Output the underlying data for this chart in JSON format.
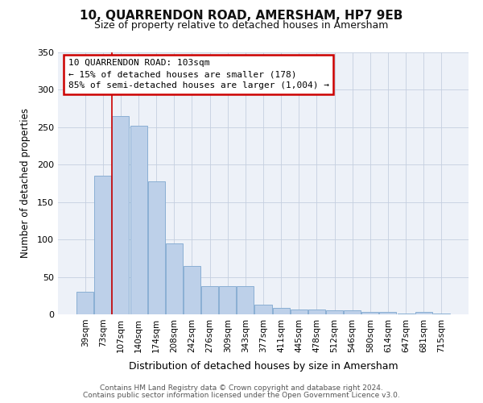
{
  "title": "10, QUARRENDON ROAD, AMERSHAM, HP7 9EB",
  "subtitle": "Size of property relative to detached houses in Amersham",
  "xlabel": "Distribution of detached houses by size in Amersham",
  "ylabel": "Number of detached properties",
  "categories": [
    "39sqm",
    "73sqm",
    "107sqm",
    "140sqm",
    "174sqm",
    "208sqm",
    "242sqm",
    "276sqm",
    "309sqm",
    "343sqm",
    "377sqm",
    "411sqm",
    "445sqm",
    "478sqm",
    "512sqm",
    "546sqm",
    "580sqm",
    "614sqm",
    "647sqm",
    "681sqm",
    "715sqm"
  ],
  "values": [
    30,
    185,
    265,
    252,
    178,
    95,
    65,
    38,
    38,
    38,
    13,
    9,
    6,
    6,
    5,
    5,
    3,
    3,
    1,
    3,
    1
  ],
  "bar_color": "#bdd0e9",
  "bar_edge_color": "#8aafd4",
  "highlight_index": 2,
  "highlight_line_color": "#cc0000",
  "ylim": [
    0,
    350
  ],
  "yticks": [
    0,
    50,
    100,
    150,
    200,
    250,
    300,
    350
  ],
  "annotation_line1": "10 QUARRENDON ROAD: 103sqm",
  "annotation_line2": "← 15% of detached houses are smaller (178)",
  "annotation_line3": "85% of semi-detached houses are larger (1,004) →",
  "footer_line1": "Contains HM Land Registry data © Crown copyright and database right 2024.",
  "footer_line2": "Contains public sector information licensed under the Open Government Licence v3.0.",
  "background_color": "#ffffff",
  "plot_bg_color": "#edf1f8"
}
